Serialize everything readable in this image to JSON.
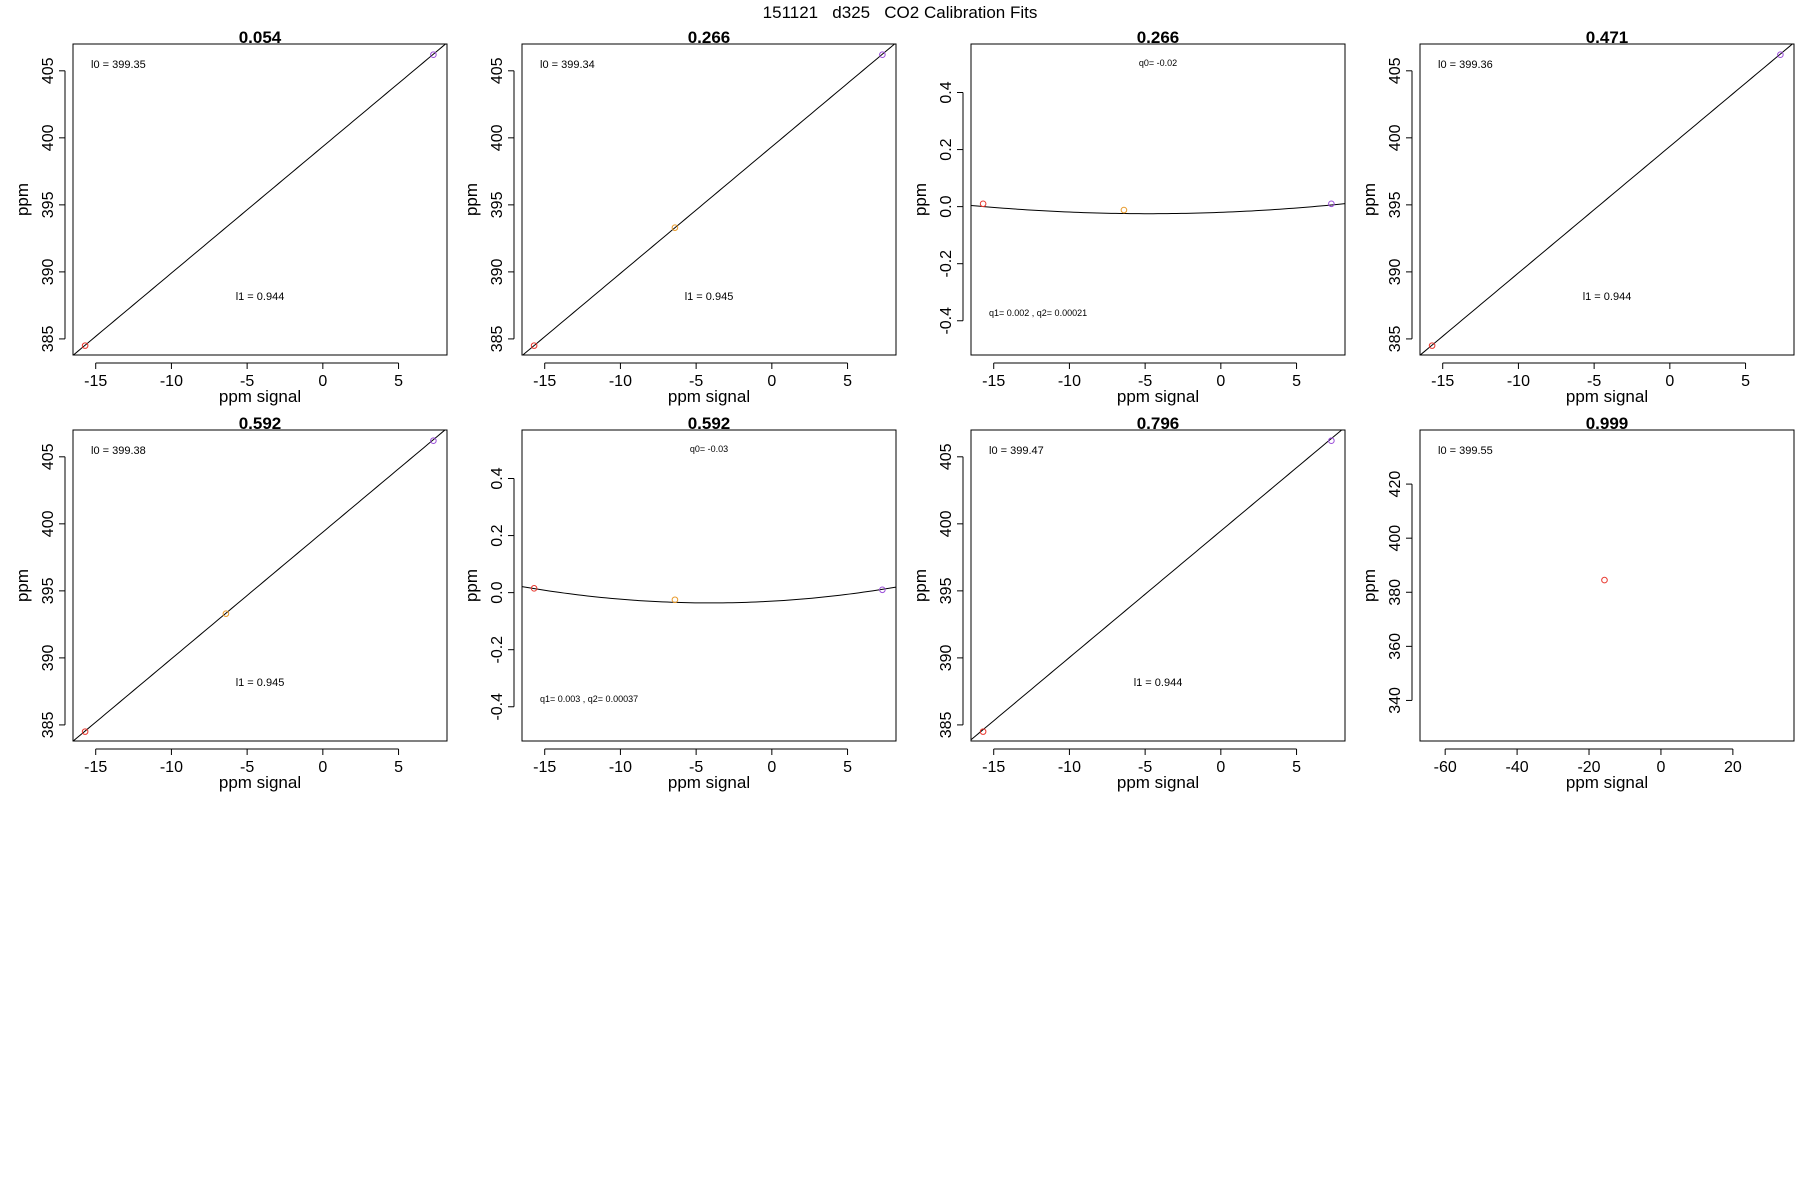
{
  "page_title": "151121   d325   CO2 Calibration Fits",
  "colors": {
    "red": "#e8382f",
    "orange": "#e89a2a",
    "purple": "#9b4fd9",
    "axis": "#000000"
  },
  "chart_data": [
    {
      "type": "scatter",
      "title": "0.054",
      "xlabel": "ppm signal",
      "ylabel": "ppm",
      "xlim": [
        -16.5,
        8.2
      ],
      "ylim": [
        383.8,
        407.0
      ],
      "xticks": [
        -15,
        -10,
        -5,
        0,
        5
      ],
      "xtick_labels": [
        "-15",
        "-10",
        "-5",
        "0",
        "5"
      ],
      "yticks": [
        385,
        390,
        395,
        400,
        405
      ],
      "ytick_labels": [
        "385",
        "390",
        "395",
        "400",
        "405"
      ],
      "points": [
        {
          "x": -15.7,
          "y": 384.5,
          "color": "#e8382f"
        },
        {
          "x": 7.3,
          "y": 406.2,
          "color": "#9b4fd9"
        }
      ],
      "fit": {
        "kind": "linear",
        "intercept": 399.35,
        "slope": 0.944
      },
      "annotations": [
        "l0 =  399.35",
        "l1 =  0.944"
      ]
    },
    {
      "type": "scatter",
      "title": "0.266",
      "xlabel": "ppm signal",
      "ylabel": "ppm",
      "xlim": [
        -16.5,
        8.2
      ],
      "ylim": [
        383.8,
        407.0
      ],
      "xticks": [
        -15,
        -10,
        -5,
        0,
        5
      ],
      "xtick_labels": [
        "-15",
        "-10",
        "-5",
        "0",
        "5"
      ],
      "yticks": [
        385,
        390,
        395,
        400,
        405
      ],
      "ytick_labels": [
        "385",
        "390",
        "395",
        "400",
        "405"
      ],
      "points": [
        {
          "x": -15.7,
          "y": 384.5,
          "color": "#e8382f"
        },
        {
          "x": -6.4,
          "y": 393.3,
          "color": "#e89a2a"
        },
        {
          "x": 7.3,
          "y": 406.2,
          "color": "#9b4fd9"
        }
      ],
      "fit": {
        "kind": "linear",
        "intercept": 399.34,
        "slope": 0.945
      },
      "annotations": [
        "l0 =  399.34",
        "l1 =  0.945"
      ]
    },
    {
      "type": "scatter",
      "title": "0.266",
      "xlabel": "ppm signal",
      "ylabel": "ppm",
      "xlim": [
        -16.5,
        8.2
      ],
      "ylim": [
        -0.52,
        0.57
      ],
      "xticks": [
        -15,
        -10,
        -5,
        0,
        5
      ],
      "xtick_labels": [
        "-15",
        "-10",
        "-5",
        "0",
        "5"
      ],
      "yticks": [
        -0.4,
        -0.2,
        0.0,
        0.2,
        0.4
      ],
      "ytick_labels": [
        "-0.4",
        "-0.2",
        "0.0",
        "0.2",
        "0.4"
      ],
      "points": [
        {
          "x": -15.7,
          "y": 0.01,
          "color": "#e8382f"
        },
        {
          "x": -6.4,
          "y": -0.012,
          "color": "#e89a2a"
        },
        {
          "x": 7.3,
          "y": 0.01,
          "color": "#9b4fd9"
        }
      ],
      "fit": {
        "kind": "quadratic",
        "q0": -0.02,
        "q1": 0.002,
        "q2": 0.00021
      },
      "annotations": [
        "q0= -0.02",
        "q1= 0.002 , q2= 0.00021"
      ]
    },
    {
      "type": "scatter",
      "title": "0.471",
      "xlabel": "ppm signal",
      "ylabel": "ppm",
      "xlim": [
        -16.5,
        8.2
      ],
      "ylim": [
        383.8,
        407.0
      ],
      "xticks": [
        -15,
        -10,
        -5,
        0,
        5
      ],
      "xtick_labels": [
        "-15",
        "-10",
        "-5",
        "0",
        "5"
      ],
      "yticks": [
        385,
        390,
        395,
        400,
        405
      ],
      "ytick_labels": [
        "385",
        "390",
        "395",
        "400",
        "405"
      ],
      "points": [
        {
          "x": -15.7,
          "y": 384.5,
          "color": "#e8382f"
        },
        {
          "x": 7.3,
          "y": 406.2,
          "color": "#9b4fd9"
        }
      ],
      "fit": {
        "kind": "linear",
        "intercept": 399.36,
        "slope": 0.944
      },
      "annotations": [
        "l0 =  399.36",
        "l1 =  0.944"
      ]
    },
    {
      "type": "scatter",
      "title": "0.592",
      "xlabel": "ppm signal",
      "ylabel": "ppm",
      "xlim": [
        -16.5,
        8.2
      ],
      "ylim": [
        383.8,
        407.0
      ],
      "xticks": [
        -15,
        -10,
        -5,
        0,
        5
      ],
      "xtick_labels": [
        "-15",
        "-10",
        "-5",
        "0",
        "5"
      ],
      "yticks": [
        385,
        390,
        395,
        400,
        405
      ],
      "ytick_labels": [
        "385",
        "390",
        "395",
        "400",
        "405"
      ],
      "points": [
        {
          "x": -15.7,
          "y": 384.5,
          "color": "#e8382f"
        },
        {
          "x": -6.4,
          "y": 393.3,
          "color": "#e89a2a"
        },
        {
          "x": 7.3,
          "y": 406.2,
          "color": "#9b4fd9"
        }
      ],
      "fit": {
        "kind": "linear",
        "intercept": 399.38,
        "slope": 0.945
      },
      "annotations": [
        "l0 =  399.38",
        "l1 =  0.945"
      ]
    },
    {
      "type": "scatter",
      "title": "0.592",
      "xlabel": "ppm signal",
      "ylabel": "ppm",
      "xlim": [
        -16.5,
        8.2
      ],
      "ylim": [
        -0.52,
        0.57
      ],
      "xticks": [
        -15,
        -10,
        -5,
        0,
        5
      ],
      "xtick_labels": [
        "-15",
        "-10",
        "-5",
        "0",
        "5"
      ],
      "yticks": [
        -0.4,
        -0.2,
        0.0,
        0.2,
        0.4
      ],
      "ytick_labels": [
        "-0.4",
        "-0.2",
        "0.0",
        "0.2",
        "0.4"
      ],
      "points": [
        {
          "x": -15.7,
          "y": 0.015,
          "color": "#e8382f"
        },
        {
          "x": -6.4,
          "y": -0.025,
          "color": "#e89a2a"
        },
        {
          "x": 7.3,
          "y": 0.01,
          "color": "#9b4fd9"
        }
      ],
      "fit": {
        "kind": "quadratic",
        "q0": -0.03,
        "q1": 0.003,
        "q2": 0.00037
      },
      "annotations": [
        "q0= -0.03",
        "q1= 0.003 , q2= 0.00037"
      ]
    },
    {
      "type": "scatter",
      "title": "0.796",
      "xlabel": "ppm signal",
      "ylabel": "ppm",
      "xlim": [
        -16.5,
        8.2
      ],
      "ylim": [
        383.8,
        407.0
      ],
      "xticks": [
        -15,
        -10,
        -5,
        0,
        5
      ],
      "xtick_labels": [
        "-15",
        "-10",
        "-5",
        "0",
        "5"
      ],
      "yticks": [
        385,
        390,
        395,
        400,
        405
      ],
      "ytick_labels": [
        "385",
        "390",
        "395",
        "400",
        "405"
      ],
      "points": [
        {
          "x": -15.7,
          "y": 384.5,
          "color": "#e8382f"
        },
        {
          "x": 7.3,
          "y": 406.2,
          "color": "#9b4fd9"
        }
      ],
      "fit": {
        "kind": "linear",
        "intercept": 399.47,
        "slope": 0.944
      },
      "annotations": [
        "l0 =  399.47",
        "l1 =  0.944"
      ]
    },
    {
      "type": "scatter",
      "title": "0.999",
      "xlabel": "ppm signal",
      "ylabel": "ppm",
      "xlim": [
        -67,
        37
      ],
      "ylim": [
        325,
        440
      ],
      "xticks": [
        -60,
        -40,
        -20,
        0,
        20
      ],
      "xtick_labels": [
        "-60",
        "-40",
        "-20",
        "0",
        "20"
      ],
      "yticks": [
        340,
        360,
        380,
        400,
        420
      ],
      "ytick_labels": [
        "340",
        "360",
        "380",
        "400",
        "420"
      ],
      "points": [
        {
          "x": -15.7,
          "y": 384.5,
          "color": "#e8382f"
        }
      ],
      "fit": null,
      "annotations": [
        "l0 =  399.55"
      ]
    }
  ]
}
